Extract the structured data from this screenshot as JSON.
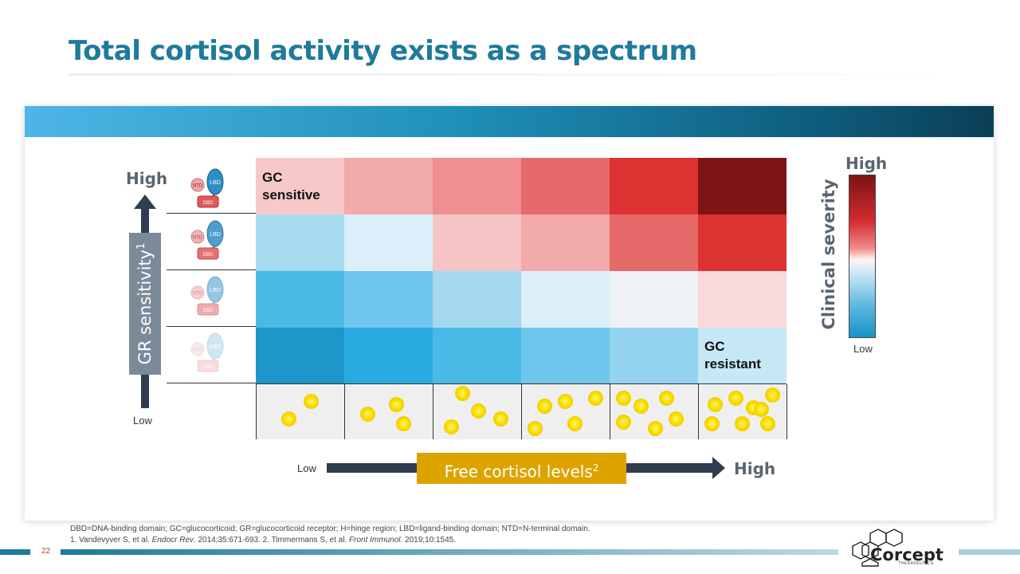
{
  "title": "Total cortisol activity exists as a spectrum",
  "grid": {
    "rows": [
      [
        "#f6c8c8",
        "#f2aaaa",
        "#ef8f8f",
        "#e66a6a",
        "#dc3232",
        "#7e1416"
      ],
      [
        "#a9dbf0",
        "#dbeffa",
        "#f5c4c4",
        "#f2aaaa",
        "#e66a6a",
        "#dc3232"
      ],
      [
        "#4ab9e6",
        "#6ec6ec",
        "#a6d9f0",
        "#ddf0fa",
        "#eef2f5",
        "#f8dada"
      ],
      [
        "#1d97c9",
        "#2aabe0",
        "#4ab9e6",
        "#6ec6ec",
        "#94d3ef",
        "#c6e8f6"
      ]
    ],
    "cortisol_counts": [
      2,
      3,
      4,
      5,
      6,
      8
    ],
    "label_sensitive": "GC",
    "label_sensitive_2": "sensitive",
    "label_resistant": "GC",
    "label_resistant_2": "resistant",
    "cortisol_color": "#ffe600"
  },
  "y_axis": {
    "label": "GR sensitivity",
    "superscript": "1",
    "high": "High",
    "low": "Low",
    "icons": [
      {
        "name": "gr-full-icon",
        "opacity": 1.0
      },
      {
        "name": "gr-high-icon",
        "opacity": 0.85
      },
      {
        "name": "gr-mid-icon",
        "opacity": 0.5
      },
      {
        "name": "gr-low-icon",
        "opacity": 0.22
      }
    ],
    "icon_text": {
      "lbd": "LBD",
      "ntd": "NTD",
      "dbd": "DBD"
    }
  },
  "x_axis": {
    "label": "Free cortisol levels",
    "superscript": "2",
    "low": "Low",
    "high": "High"
  },
  "legend": {
    "title": "Clinical severity",
    "high": "High",
    "low": "Low"
  },
  "footer": {
    "abbreviations": "DBD=DNA-binding domain; GC=glucocorticoid; GR=glucocorticoid receptor; H=hinge region; LBD=ligand-binding domain; NTD=N-terminal domain.",
    "references_prefix": "1. Vandevyver S, et al. ",
    "ref1_journal": "Endocr Rev",
    "ref1_rest": ". 2014;35:671-693. 2. Timmermans S, et al. ",
    "ref2_journal": "Front Immunol.",
    "ref2_rest": " 2019;10:1545.",
    "page_number": "22",
    "logo_text": "Corcept",
    "logo_subtext": "THERAPEUTICS"
  },
  "colors": {
    "title": "#1f7a9c",
    "accent_gold": "#dda400",
    "arrow_dark": "#2f3d4f"
  }
}
